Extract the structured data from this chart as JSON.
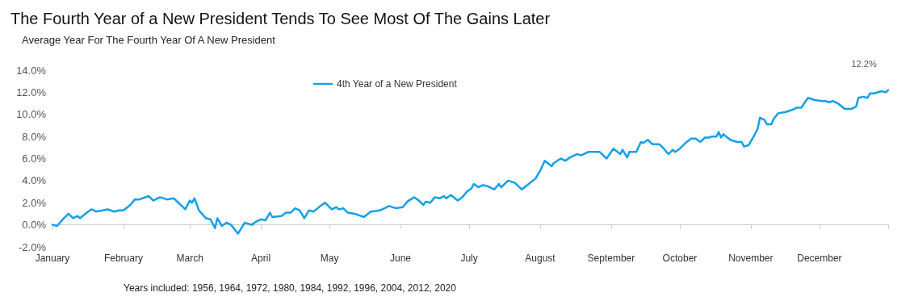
{
  "chart_data": {
    "type": "line",
    "title": "The Fourth Year of a New President Tends To See Most Of The Gains Later",
    "subtitle": "Average Year For The Fourth Year Of A New President",
    "annotations": [
      {
        "text": "12.2%",
        "x": "--12-31",
        "y": 12.2
      },
      "Years included: 1956, 1964, 1972, 1980, 1984, 1992, 1996, 2004, 2012, 2020"
    ],
    "series": [
      {
        "name": "4th Year of a New President",
        "color": "#12a0e8",
        "x": [
          "--01-01",
          "--01-03",
          "--01-06",
          "--01-08",
          "--01-10",
          "--01-12",
          "--01-13",
          "--01-16",
          "--01-18",
          "--01-20",
          "--01-23",
          "--01-25",
          "--01-28",
          "--01-30",
          "--02-01",
          "--02-04",
          "--02-06",
          "--02-08",
          "--02-12",
          "--02-14",
          "--02-17",
          "--02-20",
          "--02-23",
          "--02-25",
          "--02-28",
          "--03-01",
          "--03-02",
          "--03-03",
          "--03-05",
          "--03-08",
          "--03-10",
          "--03-12",
          "--03-13",
          "--03-15",
          "--03-17",
          "--03-19",
          "--03-22",
          "--03-25",
          "--03-28",
          "--03-30",
          "--04-01",
          "--04-03",
          "--04-05",
          "--04-06",
          "--04-10",
          "--04-12",
          "--04-14",
          "--04-16",
          "--04-18",
          "--04-20",
          "--04-22",
          "--04-24",
          "--04-27",
          "--04-29",
          "--05-02",
          "--05-04",
          "--05-05",
          "--05-07",
          "--05-09",
          "--05-12",
          "--05-16",
          "--05-19",
          "--05-23",
          "--05-27",
          "--05-30",
          "--06-02",
          "--06-04",
          "--06-07",
          "--06-09",
          "--06-11",
          "--06-12",
          "--06-14",
          "--06-16",
          "--06-18",
          "--06-20",
          "--06-21",
          "--06-23",
          "--06-26",
          "--06-28",
          "--06-30",
          "--07-02",
          "--07-03",
          "--07-05",
          "--07-07",
          "--07-09",
          "--07-12",
          "--07-14",
          "--07-15",
          "--07-18",
          "--07-21",
          "--07-24",
          "--07-27",
          "--07-30",
          "--08-01",
          "--08-03",
          "--08-06",
          "--08-07",
          "--08-10",
          "--08-12",
          "--08-14",
          "--08-17",
          "--08-19",
          "--08-22",
          "--08-27",
          "--08-30",
          "--09-02",
          "--09-05",
          "--09-06",
          "--09-08",
          "--09-09",
          "--09-12",
          "--09-14",
          "--09-15",
          "--09-17",
          "--09-19",
          "--09-22",
          "--09-24",
          "--09-26",
          "--09-28",
          "--09-29",
          "--10-01",
          "--10-04",
          "--10-06",
          "--10-08",
          "--10-10",
          "--10-12",
          "--10-14",
          "--10-15",
          "--10-17",
          "--10-18",
          "--10-19",
          "--10-20",
          "--10-23",
          "--10-26",
          "--10-28",
          "--10-29",
          "--10-31",
          "--11-02",
          "--11-04",
          "--11-05",
          "--11-07",
          "--11-08",
          "--11-10",
          "--11-11",
          "--11-13",
          "--11-16",
          "--11-19",
          "--11-21",
          "--11-23",
          "--11-25",
          "--11-26",
          "--11-29",
          "--12-02",
          "--12-04",
          "--12-05",
          "--12-07",
          "--12-09",
          "--12-12",
          "--12-15",
          "--12-17",
          "--12-18",
          "--12-20",
          "--12-22",
          "--12-23",
          "--12-25",
          "--12-28",
          "--12-30",
          "--12-31"
        ],
        "values": [
          0.0,
          -0.1,
          0.6,
          1.0,
          0.6,
          0.8,
          0.6,
          1.1,
          1.4,
          1.2,
          1.3,
          1.4,
          1.2,
          1.3,
          1.3,
          1.8,
          2.3,
          2.3,
          2.6,
          2.2,
          2.5,
          2.3,
          2.4,
          2.0,
          1.4,
          2.2,
          2.0,
          2.4,
          1.3,
          0.6,
          0.5,
          -0.3,
          0.6,
          -0.1,
          0.2,
          0.0,
          -0.8,
          0.2,
          0.0,
          0.3,
          0.5,
          0.4,
          1.1,
          0.7,
          0.8,
          1.1,
          1.1,
          1.5,
          1.3,
          0.6,
          1.3,
          1.2,
          1.7,
          2.0,
          1.4,
          1.6,
          1.4,
          1.5,
          1.1,
          1.0,
          0.7,
          1.2,
          1.3,
          1.7,
          1.5,
          1.6,
          2.1,
          2.5,
          2.2,
          1.8,
          2.1,
          2.0,
          2.5,
          2.4,
          2.6,
          2.4,
          2.7,
          2.2,
          2.5,
          3.0,
          3.3,
          3.7,
          3.4,
          3.6,
          3.5,
          3.2,
          3.7,
          3.4,
          4.0,
          3.8,
          3.2,
          3.7,
          4.2,
          4.9,
          5.8,
          5.3,
          5.6,
          6.0,
          5.8,
          6.1,
          6.4,
          6.3,
          6.6,
          6.6,
          6.0,
          6.9,
          6.4,
          6.8,
          6.1,
          6.6,
          6.6,
          7.5,
          7.4,
          7.7,
          7.3,
          7.3,
          6.9,
          6.4,
          6.8,
          6.6,
          6.9,
          7.5,
          7.8,
          7.8,
          7.5,
          7.9,
          7.9,
          8.0,
          8.0,
          8.4,
          7.9,
          8.2,
          7.7,
          7.5,
          7.5,
          7.1,
          7.2,
          7.9,
          8.7,
          9.7,
          9.5,
          9.1,
          9.1,
          9.6,
          10.1,
          10.2,
          10.4,
          10.6,
          10.6,
          11.2,
          11.5,
          11.3,
          11.2,
          11.2,
          11.1,
          11.2,
          11.0,
          10.5,
          10.5,
          10.7,
          11.5,
          11.6,
          11.5,
          11.9,
          11.9,
          12.1,
          12.0,
          12.2
        ]
      }
    ],
    "xlim": [
      "--01-01",
      "--12-31"
    ],
    "xticks": [
      {
        "value": "--01-01",
        "label": "January"
      },
      {
        "value": "--02-01",
        "label": "February"
      },
      {
        "value": "--03-01",
        "label": "March"
      },
      {
        "value": "--04-01",
        "label": "April"
      },
      {
        "value": "--05-01",
        "label": "May"
      },
      {
        "value": "--06-01",
        "label": "June"
      },
      {
        "value": "--07-01",
        "label": "July"
      },
      {
        "value": "--08-01",
        "label": "August"
      },
      {
        "value": "--09-01",
        "label": "September"
      },
      {
        "value": "--10-01",
        "label": "October"
      },
      {
        "value": "--11-01",
        "label": "November"
      },
      {
        "value": "--12-01",
        "label": "December"
      },
      {
        "value": "--12-31",
        "label": null
      }
    ],
    "ylim": [
      -2,
      14
    ],
    "yticks": [
      {
        "value": -2,
        "label": "-2.0%"
      },
      {
        "value": 0,
        "label": "0.0%"
      },
      {
        "value": 2,
        "label": "2.0%"
      },
      {
        "value": 4,
        "label": "4.0%"
      },
      {
        "value": 6,
        "label": "6.0%"
      },
      {
        "value": 8,
        "label": "8.0%"
      },
      {
        "value": 10,
        "label": "10.0%"
      },
      {
        "value": 12,
        "label": "12.0%"
      },
      {
        "value": 14,
        "label": "14.0%"
      }
    ],
    "legend": "top",
    "marker": "none",
    "line_style": "solid"
  }
}
